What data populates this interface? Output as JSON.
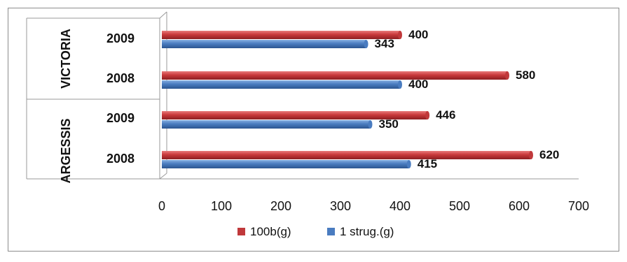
{
  "chart_data": {
    "type": "bar",
    "orientation": "horizontal",
    "groups": [
      {
        "name": "VICTORIA",
        "categories": [
          "2009",
          "2008"
        ]
      },
      {
        "name": "ARGESSIS",
        "categories": [
          "2009",
          "2008"
        ]
      }
    ],
    "categories": [
      "VICTORIA 2009",
      "VICTORIA 2008",
      "ARGESSIS 2009",
      "ARGESSIS 2008"
    ],
    "series": [
      {
        "name": "100b(g)",
        "color": "#c0393b",
        "values": [
          400,
          580,
          446,
          620
        ]
      },
      {
        "name": "1 strug.(g)",
        "color": "#4a7cc0",
        "values": [
          343,
          400,
          350,
          415
        ]
      }
    ],
    "xticks": [
      "0",
      "100",
      "200",
      "300",
      "400",
      "500",
      "600",
      "700"
    ],
    "xlim": [
      0,
      700
    ],
    "title": "",
    "xlabel": "",
    "ylabel": "",
    "grid": false,
    "legend_position": "bottom"
  }
}
